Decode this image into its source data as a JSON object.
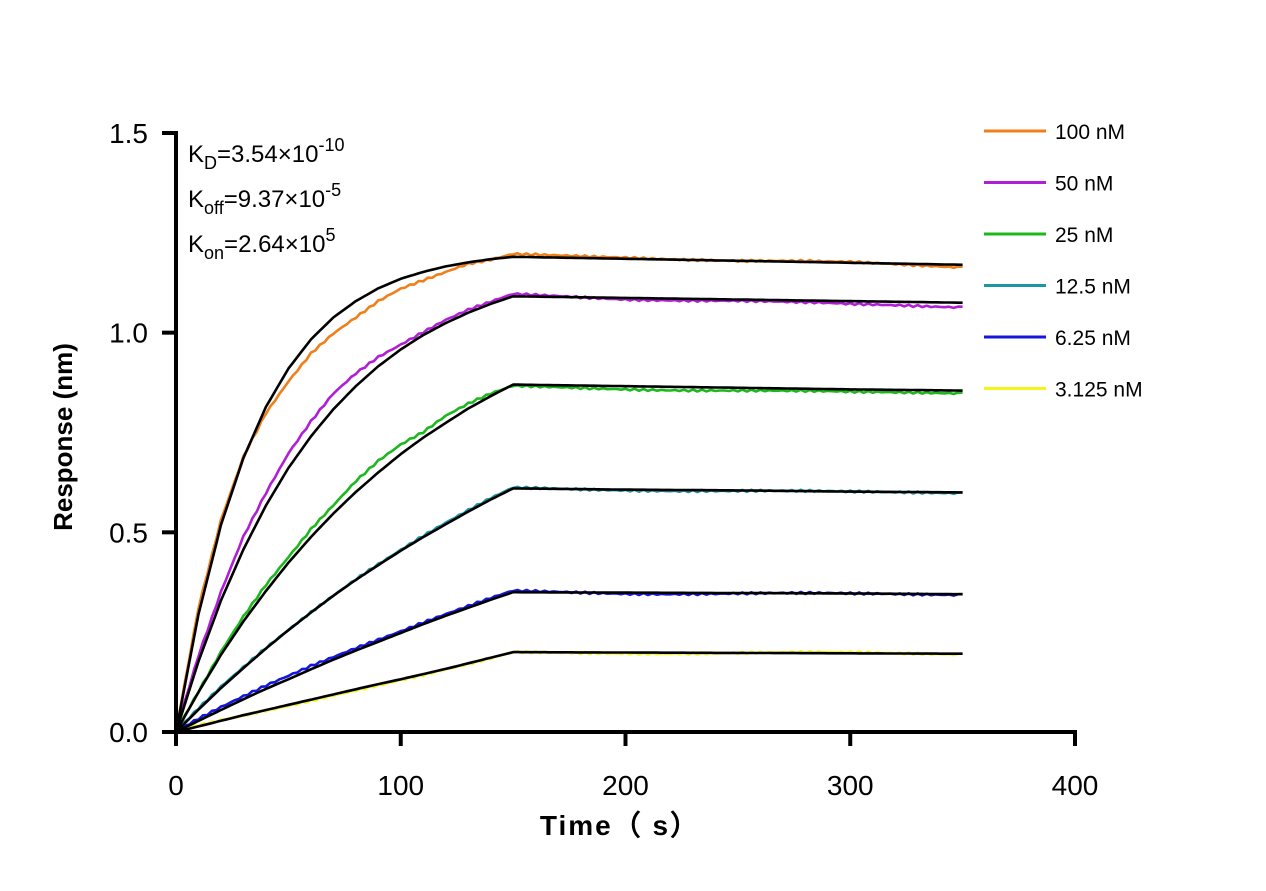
{
  "chart_data": {
    "type": "line",
    "xlabel": "Time（ s）",
    "ylabel": "Response (nm)",
    "xlim": [
      0,
      400
    ],
    "ylim": [
      0,
      1.5
    ],
    "xticks": [
      "0",
      "100",
      "200",
      "300",
      "400"
    ],
    "yticks": [
      "0.0",
      "0.5",
      "1.0",
      "1.5"
    ],
    "grid": false,
    "legend_position": "top-right",
    "annotations": [
      {
        "main": "K",
        "sub": "D",
        "rest": "=3.54×10",
        "sup": "-10"
      },
      {
        "main": "K",
        "sub": "off",
        "rest": "=9.37×10",
        "sup": "-5"
      },
      {
        "main": "K",
        "sub": "on",
        "rest": "=2.64×10",
        "sup": "5"
      }
    ],
    "x": [
      0,
      10,
      20,
      30,
      40,
      50,
      60,
      70,
      80,
      90,
      100,
      110,
      120,
      130,
      140,
      150,
      200,
      250,
      300,
      350
    ],
    "fit_color": "#000000",
    "series": [
      {
        "name": "100 nM",
        "color": "#F07F1A",
        "observed": [
          0,
          0.31,
          0.53,
          0.69,
          0.8,
          0.88,
          0.95,
          1.0,
          1.04,
          1.08,
          1.11,
          1.13,
          1.15,
          1.17,
          1.18,
          1.195,
          1.19,
          1.18,
          1.175,
          1.165
        ],
        "fit": [
          0,
          0.295,
          0.518,
          0.686,
          0.814,
          0.91,
          0.983,
          1.038,
          1.079,
          1.111,
          1.135,
          1.152,
          1.166,
          1.176,
          1.184,
          1.19,
          1.185,
          1.18,
          1.175,
          1.17
        ]
      },
      {
        "name": "50 nM",
        "color": "#B01FD6",
        "observed": [
          0,
          0.19,
          0.35,
          0.49,
          0.6,
          0.7,
          0.78,
          0.85,
          0.9,
          0.94,
          0.97,
          1.0,
          1.03,
          1.055,
          1.075,
          1.095,
          1.085,
          1.08,
          1.07,
          1.065
        ],
        "fit": [
          0,
          0.177,
          0.329,
          0.457,
          0.567,
          0.661,
          0.74,
          0.808,
          0.866,
          0.916,
          0.958,
          0.994,
          1.024,
          1.05,
          1.072,
          1.091,
          1.087,
          1.083,
          1.079,
          1.075
        ]
      },
      {
        "name": "25 nM",
        "color": "#1DB81D",
        "observed": [
          0,
          0.1,
          0.2,
          0.29,
          0.37,
          0.44,
          0.51,
          0.57,
          0.63,
          0.68,
          0.72,
          0.75,
          0.79,
          0.82,
          0.845,
          0.865,
          0.86,
          0.855,
          0.85,
          0.85
        ],
        "fit": [
          0,
          0.1,
          0.193,
          0.277,
          0.353,
          0.424,
          0.488,
          0.547,
          0.601,
          0.65,
          0.696,
          0.737,
          0.774,
          0.81,
          0.841,
          0.87,
          0.866,
          0.862,
          0.858,
          0.855
        ]
      },
      {
        "name": "12.5 nM",
        "color": "#1B95A8",
        "observed": [
          0,
          0.058,
          0.113,
          0.163,
          0.212,
          0.258,
          0.302,
          0.344,
          0.384,
          0.421,
          0.456,
          0.49,
          0.522,
          0.553,
          0.583,
          0.61,
          0.607,
          0.604,
          0.6,
          0.6
        ],
        "fit": [
          0,
          0.056,
          0.11,
          0.16,
          0.209,
          0.255,
          0.299,
          0.341,
          0.381,
          0.418,
          0.454,
          0.488,
          0.52,
          0.552,
          0.582,
          0.61,
          0.607,
          0.605,
          0.602,
          0.6
        ]
      },
      {
        "name": "6.25 nM",
        "color": "#1515E0",
        "observed": [
          0,
          0.032,
          0.062,
          0.09,
          0.118,
          0.143,
          0.168,
          0.19,
          0.212,
          0.232,
          0.252,
          0.273,
          0.293,
          0.313,
          0.333,
          0.352,
          0.348,
          0.347,
          0.345,
          0.345
        ],
        "fit": [
          0,
          0.028,
          0.055,
          0.082,
          0.108,
          0.132,
          0.157,
          0.181,
          0.204,
          0.226,
          0.248,
          0.27,
          0.291,
          0.311,
          0.331,
          0.35,
          0.349,
          0.348,
          0.347,
          0.345
        ]
      },
      {
        "name": "3.125 nM",
        "color": "#F5F51A",
        "observed": [
          0,
          0.015,
          0.029,
          0.042,
          0.055,
          0.068,
          0.081,
          0.094,
          0.106,
          0.118,
          0.13,
          0.142,
          0.155,
          0.168,
          0.182,
          0.198,
          0.199,
          0.198,
          0.197,
          0.196
        ],
        "fit": [
          0,
          0.014,
          0.028,
          0.042,
          0.055,
          0.068,
          0.081,
          0.094,
          0.107,
          0.12,
          0.132,
          0.145,
          0.158,
          0.172,
          0.186,
          0.2,
          0.199,
          0.198,
          0.197,
          0.196
        ]
      }
    ]
  }
}
